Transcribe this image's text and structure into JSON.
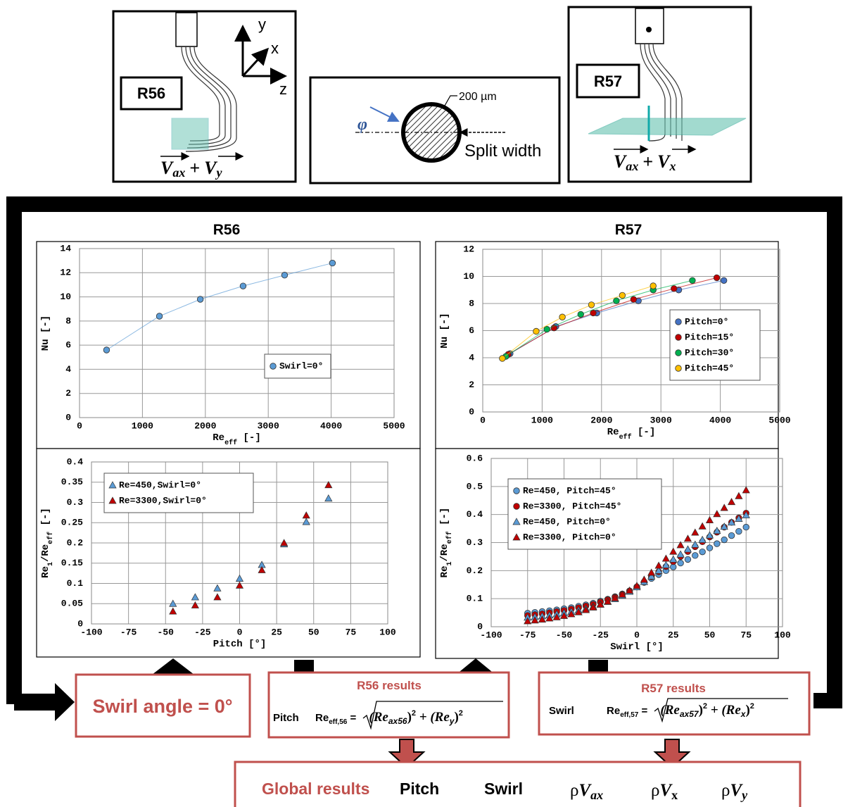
{
  "diagram": {
    "r56_panel": {
      "label": "R56",
      "axes": [
        "y",
        "x",
        "z"
      ],
      "vector": [
        "V",
        "ax",
        "+",
        "V",
        "y"
      ]
    },
    "probe_panel": {
      "size": "200 µm",
      "angle": "φ",
      "split": "Split width"
    },
    "r57_panel": {
      "label": "R57",
      "vector": [
        "V",
        "ax",
        "+",
        "V",
        "x"
      ]
    },
    "swirl_box": "Swirl angle = 0°",
    "r56_results": {
      "title": "R56 results",
      "param": "Pitch",
      "formula": [
        "Re",
        "eff,56",
        " = ",
        "(Re",
        "ax56",
        ")",
        "2",
        " + (Re",
        "y",
        ")",
        "2"
      ]
    },
    "r57_results": {
      "title": "R57 results",
      "param": "Swirl",
      "formula": [
        "Re",
        "eff,57",
        " = ",
        "(Re",
        "ax57",
        ")",
        "2",
        " + (Re",
        "x",
        ")",
        "2"
      ]
    },
    "global_results": {
      "title": "Global results",
      "items": [
        "Pitch",
        "Swirl"
      ],
      "quantities": [
        [
          "ρ",
          "V",
          "ax"
        ],
        [
          "ρ",
          "V",
          "x"
        ],
        [
          "ρ",
          "V",
          "y"
        ]
      ]
    }
  },
  "chart_data": [
    {
      "type": "line",
      "title": "R56",
      "x_label": [
        {
          "text": "Re"
        },
        {
          "sub": "eff"
        },
        {
          "text": " [-]"
        }
      ],
      "y_label": [
        {
          "text": "Nu [-]"
        }
      ],
      "x": [
        430,
        1270,
        1920,
        2600,
        3260,
        4020
      ],
      "series": [
        {
          "name": "Swirl=0°",
          "color": "#5b9bd5",
          "marker": "circle",
          "values": [
            5.6,
            8.4,
            9.8,
            10.9,
            11.8,
            12.8
          ]
        }
      ],
      "xlim": [
        0,
        5000
      ],
      "xticks": [
        0,
        1000,
        2000,
        3000,
        4000,
        5000
      ],
      "ylim": [
        0,
        14
      ],
      "yticks": [
        0,
        2,
        4,
        6,
        8,
        10,
        12,
        14
      ],
      "grid": true,
      "legend": "lower right"
    },
    {
      "type": "line",
      "title": "R57",
      "x_label": [
        {
          "text": "Re"
        },
        {
          "sub": "eff"
        },
        {
          "text": " [-]"
        }
      ],
      "y_label": [
        {
          "text": "Nu [-]"
        }
      ],
      "series": [
        {
          "name": "Pitch=0°",
          "color": "#4472c4",
          "marker": "circle",
          "x": [
            460,
            1230,
            1920,
            2620,
            3300,
            4060
          ],
          "values": [
            4.3,
            6.3,
            7.3,
            8.2,
            9.0,
            9.7
          ]
        },
        {
          "name": "Pitch=15°",
          "color": "#c00000",
          "marker": "circle",
          "x": [
            430,
            1200,
            1860,
            2540,
            3220,
            3940
          ],
          "values": [
            4.25,
            6.2,
            7.3,
            8.3,
            9.1,
            9.9
          ]
        },
        {
          "name": "Pitch=30°",
          "color": "#00b050",
          "marker": "circle",
          "x": [
            390,
            1080,
            1650,
            2250,
            2870,
            3530
          ],
          "values": [
            4.1,
            6.1,
            7.2,
            8.2,
            9.0,
            9.7
          ]
        },
        {
          "name": "Pitch=45°",
          "color": "#ffc000",
          "marker": "circle",
          "x": [
            330,
            900,
            1340,
            1830,
            2350,
            2870
          ],
          "values": [
            3.95,
            5.95,
            7.0,
            7.9,
            8.6,
            9.3
          ]
        }
      ],
      "xlim": [
        0,
        5000
      ],
      "xticks": [
        0,
        1000,
        2000,
        3000,
        4000,
        5000
      ],
      "ylim": [
        0,
        12
      ],
      "yticks": [
        0,
        2,
        4,
        6,
        8,
        10,
        12
      ],
      "grid": true,
      "legend": "lower right"
    },
    {
      "type": "scatter",
      "x_label": [
        {
          "text": "Pitch [°]"
        }
      ],
      "y_label": [
        {
          "text": "Re"
        },
        {
          "sub": "1"
        },
        {
          "text": "/Re"
        },
        {
          "sub": "eff"
        },
        {
          "text": " [-]"
        }
      ],
      "x": [
        -45,
        -30,
        -15,
        0,
        15,
        30,
        45,
        60
      ],
      "series": [
        {
          "name": "Re=450,Swirl=0°",
          "color": "#5b9bd5",
          "marker": "triangle",
          "values": [
            0.05,
            0.066,
            0.088,
            0.112,
            0.146,
            0.197,
            0.252,
            0.31
          ]
        },
        {
          "name": "Re=3300,Swirl=0°",
          "color": "#c00000",
          "marker": "triangle",
          "values": [
            0.031,
            0.046,
            0.066,
            0.095,
            0.133,
            0.2,
            0.268,
            0.343
          ]
        }
      ],
      "xlim": [
        -100,
        100
      ],
      "xticks": [
        -100,
        -75,
        -50,
        -25,
        0,
        25,
        50,
        75,
        100
      ],
      "ylim": [
        0,
        0.4
      ],
      "yticks": [
        0,
        0.05,
        0.1,
        0.15,
        0.2,
        0.25,
        0.3,
        0.35,
        0.4
      ],
      "grid": true,
      "legend": "upper left"
    },
    {
      "type": "scatter",
      "x_label": [
        {
          "text": "Swirl [°]"
        }
      ],
      "y_label": [
        {
          "text": "Re"
        },
        {
          "sub": "1"
        },
        {
          "text": "/Re"
        },
        {
          "sub": "eff"
        },
        {
          "text": " [-]"
        }
      ],
      "x": [
        -75,
        -70,
        -65,
        -60,
        -55,
        -50,
        -45,
        -40,
        -35,
        -30,
        -25,
        -20,
        -15,
        -10,
        -5,
        0,
        5,
        10,
        15,
        20,
        25,
        30,
        35,
        40,
        45,
        50,
        55,
        60,
        65,
        70,
        75
      ],
      "series": [
        {
          "name": "Re=450, Pitch=45°",
          "color": "#5b9bd5",
          "marker": "circle",
          "values": [
            0.048,
            0.051,
            0.054,
            0.057,
            0.06,
            0.064,
            0.068,
            0.073,
            0.078,
            0.084,
            0.091,
            0.098,
            0.107,
            0.117,
            0.128,
            0.142,
            0.158,
            0.172,
            0.186,
            0.2,
            0.213,
            0.227,
            0.24,
            0.254,
            0.267,
            0.281,
            0.296,
            0.31,
            0.325,
            0.34,
            0.355
          ]
        },
        {
          "name": "Re=3300, Pitch=45°",
          "color": "#c00000",
          "marker": "circle",
          "values": [
            0.04,
            0.043,
            0.046,
            0.05,
            0.054,
            0.058,
            0.063,
            0.068,
            0.074,
            0.08,
            0.088,
            0.096,
            0.105,
            0.115,
            0.127,
            0.142,
            0.16,
            0.178,
            0.196,
            0.214,
            0.232,
            0.25,
            0.268,
            0.285,
            0.303,
            0.32,
            0.337,
            0.355,
            0.372,
            0.388,
            0.405
          ]
        },
        {
          "name": "Re=450, Pitch=0°",
          "color": "#5b9bd5",
          "marker": "triangle",
          "values": [
            0.033,
            0.035,
            0.038,
            0.041,
            0.045,
            0.049,
            0.054,
            0.059,
            0.065,
            0.072,
            0.08,
            0.089,
            0.099,
            0.111,
            0.125,
            0.141,
            0.16,
            0.18,
            0.2,
            0.22,
            0.24,
            0.258,
            0.276,
            0.293,
            0.31,
            0.326,
            0.342,
            0.357,
            0.372,
            0.385,
            0.398
          ]
        },
        {
          "name": "Re=3300, Pitch=0°",
          "color": "#c00000",
          "marker": "triangle",
          "values": [
            0.02,
            0.023,
            0.026,
            0.03,
            0.034,
            0.039,
            0.045,
            0.052,
            0.06,
            0.069,
            0.079,
            0.09,
            0.102,
            0.115,
            0.129,
            0.146,
            0.168,
            0.193,
            0.218,
            0.243,
            0.268,
            0.291,
            0.314,
            0.336,
            0.358,
            0.38,
            0.402,
            0.424,
            0.445,
            0.466,
            0.487
          ]
        }
      ],
      "xlim": [
        -100,
        100
      ],
      "xticks": [
        -100,
        -75,
        -50,
        -25,
        0,
        25,
        50,
        75,
        100
      ],
      "ylim": [
        0,
        0.6
      ],
      "yticks": [
        0,
        0.1,
        0.2,
        0.3,
        0.4,
        0.5,
        0.6
      ],
      "grid": true,
      "legend": "upper left"
    }
  ]
}
